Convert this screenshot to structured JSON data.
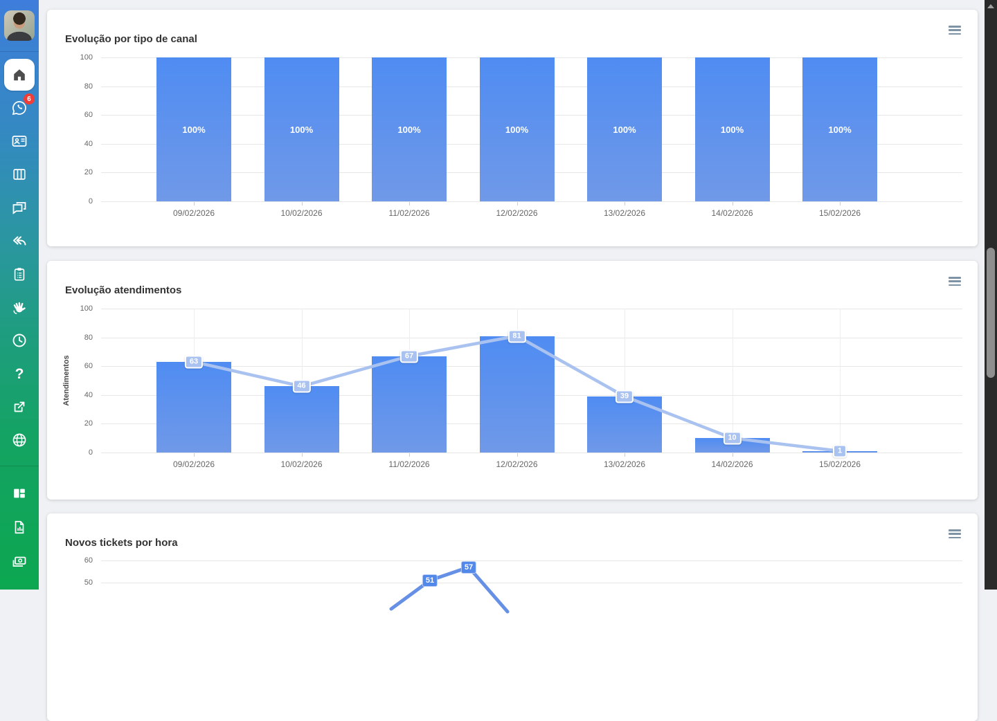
{
  "sidebar": {
    "whatsapp_badge": "6",
    "icons": [
      "user-avatar",
      "home",
      "whatsapp",
      "contacts-card",
      "board-columns",
      "chat-bubbles",
      "reply-all",
      "clipboard-list",
      "waving-hand",
      "clock",
      "help-question",
      "external-link",
      "globe",
      "layout-panels",
      "report-file",
      "money-notes"
    ]
  },
  "colors": {
    "bar_gradient_top": "#4f8cf2",
    "bar_gradient_bottom": "#7099e8",
    "chart2_line": "#a9c2f0",
    "chart3_line": "#6590e5",
    "badge_red": "#f03d38",
    "sidebar_gradient": [
      "#3e7ddb",
      "#2b96a2",
      "#0ca750"
    ]
  },
  "chart_data": [
    {
      "type": "bar",
      "title": "Evolução por tipo de canal",
      "categories": [
        "09/02/2026",
        "10/02/2026",
        "11/02/2026",
        "12/02/2026",
        "13/02/2026",
        "14/02/2026",
        "15/02/2026"
      ],
      "values": [
        100,
        100,
        100,
        100,
        100,
        100,
        100
      ],
      "bar_labels": [
        "100%",
        "100%",
        "100%",
        "100%",
        "100%",
        "100%",
        "100%"
      ],
      "ylim": [
        0,
        100
      ],
      "yticks": [
        0,
        20,
        40,
        60,
        80,
        100
      ],
      "grid": "horizontal",
      "xlabel": "",
      "ylabel": ""
    },
    {
      "type": "bar+line",
      "title": "Evolução atendimentos",
      "categories": [
        "09/02/2026",
        "10/02/2026",
        "11/02/2026",
        "12/02/2026",
        "13/02/2026",
        "14/02/2026",
        "15/02/2026"
      ],
      "values": [
        63,
        46,
        67,
        81,
        39,
        10,
        1
      ],
      "point_labels": [
        "63",
        "46",
        "67",
        "81",
        "39",
        "10",
        "1"
      ],
      "ylim": [
        0,
        100
      ],
      "yticks": [
        0,
        20,
        40,
        60,
        80,
        100
      ],
      "grid": "horizontal+vertical",
      "xlabel": "",
      "ylabel": "Atendimentos"
    },
    {
      "type": "line",
      "title": "Novos tickets por hora",
      "partial": true,
      "visible_yticks": [
        60,
        50
      ],
      "visible_point_labels": [
        "51",
        "57"
      ],
      "visible_values": [
        51,
        57
      ],
      "xlabel": "",
      "ylabel": ""
    }
  ]
}
